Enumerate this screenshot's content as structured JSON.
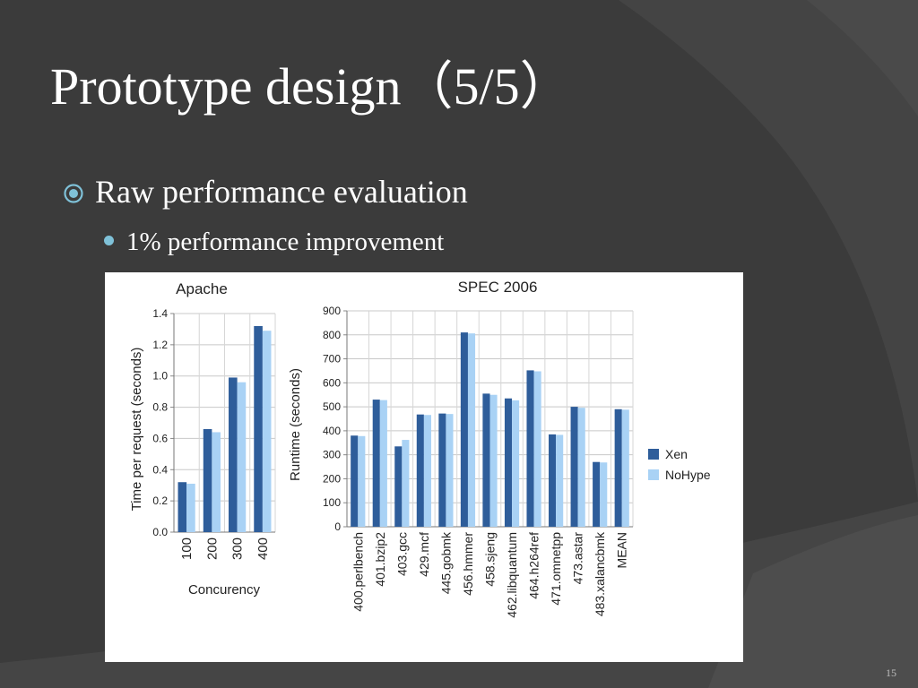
{
  "slide": {
    "title": "Prototype design（5/5）",
    "bullet1": "Raw performance evaluation",
    "bullet2": "1% performance improvement",
    "page_number": "15"
  },
  "colors": {
    "background": "#3b3b3b",
    "xen": "#2e5d9a",
    "nohype": "#a9d2f5",
    "bullet_accent": "#7fc1d8"
  },
  "chart_data": [
    {
      "type": "bar",
      "title": "Apache",
      "xlabel": "Concurency",
      "ylabel": "Time per request (seconds)",
      "categories": [
        "100",
        "200",
        "300",
        "400"
      ],
      "ylim": [
        0,
        1.4
      ],
      "yticks": [
        "0.0",
        "0.2",
        "0.4",
        "0.6",
        "0.8",
        "1.0",
        "1.2",
        "1.4"
      ],
      "grid": true,
      "series": [
        {
          "name": "Xen",
          "values": [
            0.32,
            0.66,
            0.99,
            1.32
          ]
        },
        {
          "name": "NoHype",
          "values": [
            0.31,
            0.64,
            0.96,
            1.29
          ]
        }
      ]
    },
    {
      "type": "bar",
      "title": "SPEC 2006",
      "xlabel": "",
      "ylabel": "Runtime (seconds)",
      "categories": [
        "400.perlbench",
        "401.bzip2",
        "403.gcc",
        "429.mcf",
        "445.gobmk",
        "456.hmmer",
        "458.sjeng",
        "462.libquantum",
        "464.h264ref",
        "471.omnetpp",
        "473.astar",
        "483.xalancbmk",
        "MEAN"
      ],
      "ylim": [
        0,
        900
      ],
      "yticks": [
        "0",
        "100",
        "200",
        "300",
        "400",
        "500",
        "600",
        "700",
        "800",
        "900"
      ],
      "grid": true,
      "legend": "right",
      "series": [
        {
          "name": "Xen",
          "values": [
            380,
            530,
            335,
            468,
            472,
            810,
            555,
            535,
            652,
            385,
            500,
            270,
            490
          ]
        },
        {
          "name": "NoHype",
          "values": [
            378,
            528,
            362,
            466,
            470,
            806,
            550,
            527,
            648,
            383,
            496,
            268,
            488
          ]
        }
      ]
    }
  ]
}
